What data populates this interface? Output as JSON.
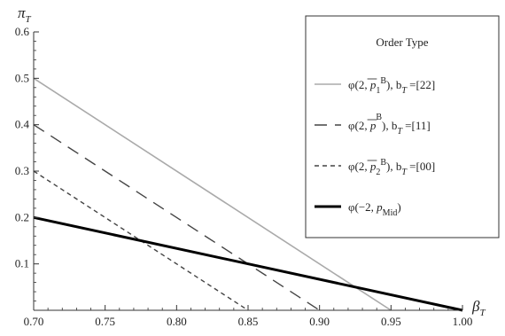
{
  "chart_data": {
    "type": "line",
    "title": "",
    "xlabel": {
      "main": "β",
      "sub": "T"
    },
    "ylabel": {
      "main": "π",
      "sub": "T"
    },
    "xlim": [
      0.7,
      1.0
    ],
    "ylim": [
      0,
      0.6
    ],
    "x_ticks": [
      "0.70",
      "0.75",
      "0.80",
      "0.85",
      "0.90",
      "0.95",
      "1.00"
    ],
    "y_ticks": [
      "0.1",
      "0.2",
      "0.3",
      "0.4",
      "0.5",
      "0.6"
    ],
    "grid": false,
    "legend": {
      "title": "Order Type",
      "placement": "top-right"
    },
    "series": [
      {
        "name": "φ(2, p̄₁ᴮ), b_T =[22]",
        "label_parts": [
          "φ(2, ",
          "p",
          "1",
          "B",
          "), b",
          "T",
          " =[22]"
        ],
        "style": "solid-light",
        "color": "#aaaaaa",
        "points": [
          [
            0.7,
            0.5
          ],
          [
            0.95,
            0.0
          ]
        ]
      },
      {
        "name": "φ(2, p̄ᴮ), b_T =[11]",
        "label_parts": [
          "φ(2, ",
          "p",
          "",
          "B",
          "), b",
          "T",
          " =[11]"
        ],
        "style": "long-dash",
        "color": "#444444",
        "points": [
          [
            0.7,
            0.4
          ],
          [
            0.9,
            0.0
          ]
        ]
      },
      {
        "name": "φ(2, p̄₂ᴮ), b_T =[00]",
        "label_parts": [
          "φ(2, ",
          "p",
          "2",
          "B",
          "), b",
          "T",
          " =[00]"
        ],
        "style": "short-dash",
        "color": "#444444",
        "points": [
          [
            0.7,
            0.3
          ],
          [
            0.85,
            0.0
          ]
        ]
      },
      {
        "name": "φ(−2, p_Mid)",
        "label_parts": [
          "φ(−2, ",
          "p",
          "Mid",
          "",
          ")",
          "",
          ""
        ],
        "style": "thick",
        "color": "#000000",
        "points": [
          [
            0.7,
            0.2
          ],
          [
            1.0,
            0.0
          ]
        ]
      }
    ]
  }
}
